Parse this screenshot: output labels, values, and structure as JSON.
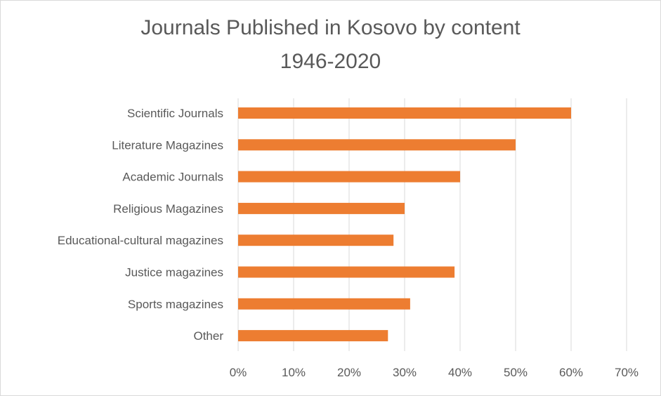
{
  "chart_data": {
    "type": "bar",
    "orientation": "horizontal",
    "title": "Journals Published in Kosovo by content",
    "subtitle": "1946-2020",
    "categories": [
      "Scientific Journals",
      "Literature Magazines",
      "Academic Journals",
      "Religious Magazines",
      "Educational-cultural magazines",
      "Justice magazines",
      "Sports magazines",
      "Other"
    ],
    "values": [
      60,
      50,
      40,
      30,
      28,
      39,
      31,
      27
    ],
    "value_unit": "%",
    "xlim": [
      0,
      70
    ],
    "xticks": [
      "0%",
      "10%",
      "20%",
      "30%",
      "40%",
      "50%",
      "60%",
      "70%"
    ],
    "grid": "vertical",
    "bar_color": "#ed7d31",
    "grid_color": "#d9d9d9",
    "text_color": "#595959"
  }
}
